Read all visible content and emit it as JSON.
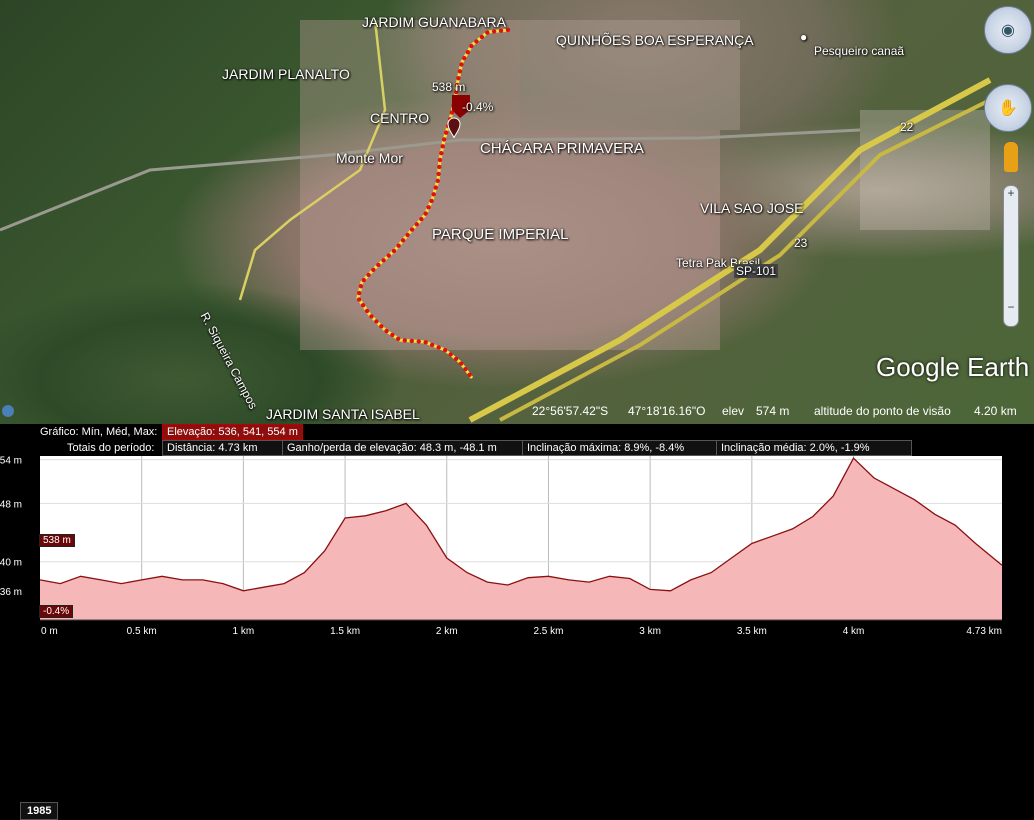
{
  "map": {
    "labels": {
      "jardim_guanabara": "JARDIM GUANABARA",
      "quinhoes": "QUINHÕES BOA ESPERANÇA",
      "pesqueiro": "Pesqueiro canaã",
      "jardim_planalto": "JARDIM PLANALTO",
      "centro": "CENTRO",
      "monte_mor": "Monte Mor",
      "chacara": "CHÁCARA PRIMAVERA",
      "vila_sao_jose": "VILA SAO JOSE",
      "parque_imperial": "PARQUE IMPERIAL",
      "tetra_pak": "Tetra Pak Brasil",
      "sp101": "SP-101",
      "road_22": "22",
      "road_23": "23",
      "siqueira": "R. Siqueira Campos",
      "jardim_santa_isabel": "JARDIM SANTA ISABEL"
    },
    "marker_elevation": "538 m",
    "marker_slope": "-0.4%",
    "year": "1985",
    "logo": "Google Earth"
  },
  "status_bar": {
    "lat": "22°56'57.42\"S",
    "lon": "47°18'16.16\"O",
    "elev_label": "elev",
    "elev_value": "574 m",
    "eye_label": "altitude do ponto de visão",
    "eye_value": "4.20 km"
  },
  "profile": {
    "graph_label": "Gráfico: Mín, Méd, Max:",
    "elevation_stats": "Elevação: 536, 541, 554 m",
    "totals_label": "Totais do período:",
    "distance": "Distância: 4.73 km",
    "gain_loss": "Ganho/perda de elevação: 48.3 m, -48.1 m",
    "max_slope": "Inclinação máxima: 8.9%, -8.4%",
    "avg_slope": "Inclinação média: 2.0%, -1.9%",
    "cursor_elev": "538 m",
    "cursor_slope": "-0.4%",
    "y_ticks": [
      "54 m",
      "48 m",
      "40 m",
      "36 m"
    ],
    "x_ticks": [
      "0 m",
      "0.5 km",
      "1 km",
      "1.5 km",
      "2 km",
      "2.5 km",
      "3 km",
      "3.5 km",
      "4 km",
      "4.73 km"
    ]
  },
  "colors": {
    "route": "#f2e43a",
    "route_dots": "#e01010",
    "profile_fill": "#f6b7b9",
    "profile_line": "#8b1010",
    "stat_highlight": "#8e0d0d"
  },
  "chart_data": {
    "type": "area",
    "xlabel": "",
    "ylabel": "",
    "x": [
      0,
      0.1,
      0.2,
      0.3,
      0.4,
      0.5,
      0.6,
      0.7,
      0.8,
      0.9,
      1.0,
      1.1,
      1.2,
      1.3,
      1.4,
      1.5,
      1.6,
      1.7,
      1.8,
      1.9,
      2.0,
      2.1,
      2.2,
      2.3,
      2.4,
      2.5,
      2.6,
      2.7,
      2.8,
      2.9,
      3.0,
      3.1,
      3.2,
      3.3,
      3.4,
      3.5,
      3.6,
      3.7,
      3.8,
      3.9,
      4.0,
      4.1,
      4.2,
      4.3,
      4.4,
      4.5,
      4.6,
      4.73
    ],
    "y": [
      537.5,
      537,
      538,
      537.5,
      537,
      537.5,
      538,
      537.5,
      537.5,
      537,
      536,
      536.5,
      537,
      538.5,
      541.5,
      546,
      546.3,
      547,
      548,
      545,
      540.5,
      538.5,
      537.2,
      536.8,
      537.8,
      538,
      537.5,
      537.2,
      538,
      537.7,
      536.2,
      536,
      537.5,
      538.5,
      540.5,
      542.5,
      543.5,
      544.5,
      546.2,
      549,
      554.2,
      551.5,
      550,
      548.5,
      546.5,
      545,
      542.5,
      539.5
    ],
    "xlim": [
      0,
      4.73
    ],
    "ylim": [
      532,
      554.5
    ],
    "grid": true
  }
}
